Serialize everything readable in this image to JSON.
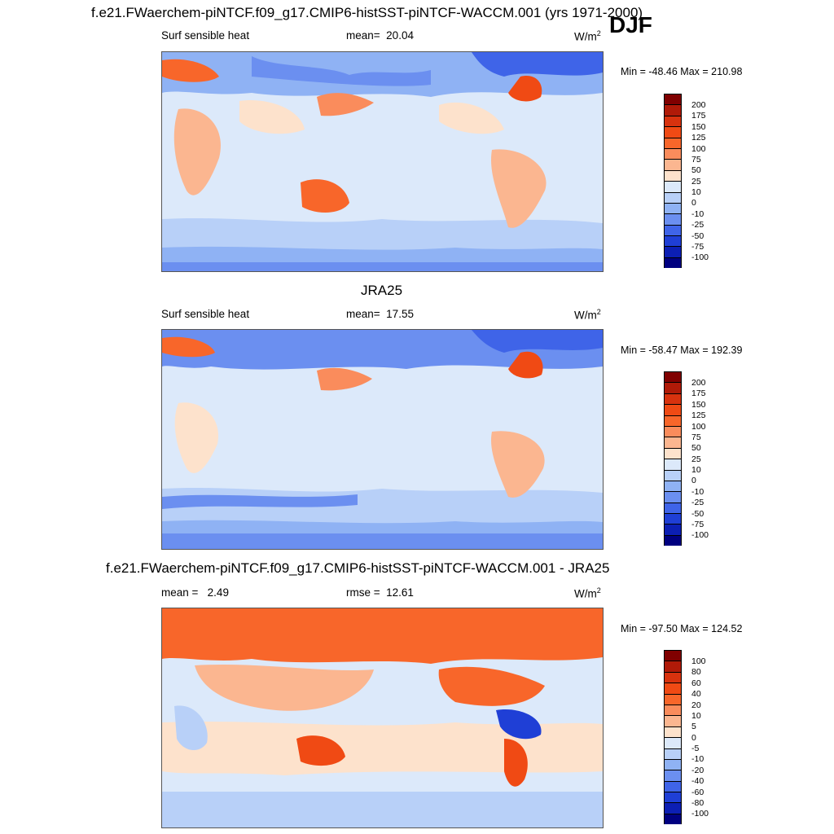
{
  "season": "DJF",
  "panels": [
    {
      "title": "f.e21.FWaerchem-piNTCF.f09_g17.CMIP6-histSST-piNTCF-WACCM.001 (yrs 1971-2000)",
      "variable": "Surf sensible heat",
      "stat1_label": "mean=",
      "stat1_value": "20.04",
      "units": "W/m",
      "units_sup": "2",
      "minmax": "Min = -48.46 Max = 210.98",
      "levels": [
        "200",
        "175",
        "150",
        "125",
        "100",
        "75",
        "50",
        "25",
        "10",
        "0",
        "-10",
        "-25",
        "-50",
        "-75",
        "-100"
      ]
    },
    {
      "title": "JRA25",
      "variable": "Surf sensible heat",
      "stat1_label": "mean=",
      "stat1_value": "17.55",
      "units": "W/m",
      "units_sup": "2",
      "minmax": "Min = -58.47 Max = 192.39",
      "levels": [
        "200",
        "175",
        "150",
        "125",
        "100",
        "75",
        "50",
        "25",
        "10",
        "0",
        "-10",
        "-25",
        "-50",
        "-75",
        "-100"
      ]
    },
    {
      "title": "f.e21.FWaerchem-piNTCF.f09_g17.CMIP6-histSST-piNTCF-WACCM.001 - JRA25",
      "stat1_label": "mean =",
      "stat1_value": "2.49",
      "stat2_label": "rmse =",
      "stat2_value": "12.61",
      "units": "W/m",
      "units_sup": "2",
      "minmax": "Min = -97.50 Max = 124.52",
      "levels": [
        "100",
        "80",
        "60",
        "40",
        "20",
        "10",
        "5",
        "0",
        "-5",
        "-10",
        "-20",
        "-40",
        "-60",
        "-80",
        "-100"
      ]
    }
  ],
  "colors": {
    "scale": [
      "#800000",
      "#b01a08",
      "#d8320e",
      "#f04a14",
      "#f8662a",
      "#fa8c5c",
      "#fbb690",
      "#fde2cc",
      "#dce9fa",
      "#b8d0f8",
      "#8fb2f4",
      "#6b8ff0",
      "#3f64e8",
      "#1f3fd6",
      "#0c1fb4",
      "#000080"
    ],
    "ocean_neutral": "#dce9fa",
    "land_warm": "#fbb690"
  }
}
